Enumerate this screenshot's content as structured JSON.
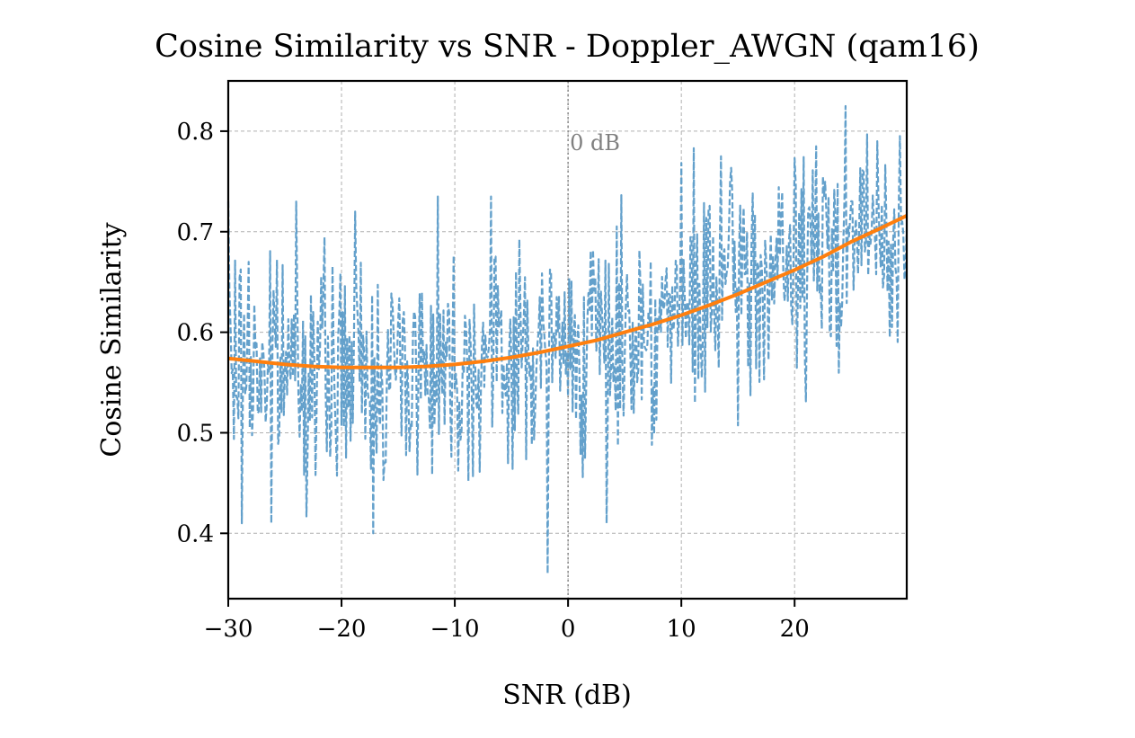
{
  "chart_data": {
    "type": "line",
    "title": "Cosine Similarity vs SNR - Doppler_AWGN (qam16)",
    "xlabel": "SNR (dB)",
    "ylabel": "Cosine Similarity",
    "xlim": [
      -30,
      29.9
    ],
    "ylim": [
      0.335,
      0.85
    ],
    "xticks": [
      -30,
      -20,
      -10,
      0,
      10,
      20
    ],
    "xtick_labels": [
      "−30",
      "−20",
      "−10",
      "0",
      "10",
      "20"
    ],
    "yticks": [
      0.4,
      0.5,
      0.6,
      0.7,
      0.8
    ],
    "ytick_labels": [
      "0.4",
      "0.5",
      "0.6",
      "0.7",
      "0.8"
    ],
    "grid": true,
    "grid_style": "dashed",
    "annotation": {
      "text": "0 dB",
      "x": 0,
      "y": 0.79,
      "vline_x": 0,
      "color": "#808080"
    },
    "series": [
      {
        "style": "dashed",
        "color": "#5b9bc8",
        "x_range": [
          -30,
          29.9
        ],
        "x_step": 0.1,
        "envelope": {
          "x": [
            -30,
            -25,
            -20,
            -15,
            -10,
            -5,
            0,
            5,
            10,
            15,
            20,
            25,
            29.9
          ],
          "mean": [
            0.57,
            0.565,
            0.562,
            0.565,
            0.57,
            0.575,
            0.585,
            0.6,
            0.62,
            0.645,
            0.665,
            0.7,
            0.69
          ],
          "spread": [
            0.055,
            0.055,
            0.055,
            0.055,
            0.055,
            0.055,
            0.055,
            0.055,
            0.06,
            0.06,
            0.06,
            0.055,
            0.05
          ]
        },
        "extremes": [
          {
            "x": -30,
            "y": 0.73
          },
          {
            "x": -28.8,
            "y": 0.41
          },
          {
            "x": -28.2,
            "y": 0.67
          },
          {
            "x": -26.2,
            "y": 0.41
          },
          {
            "x": -24.0,
            "y": 0.73
          },
          {
            "x": -18.8,
            "y": 0.72
          },
          {
            "x": -17.2,
            "y": 0.4
          },
          {
            "x": -11.5,
            "y": 0.735
          },
          {
            "x": -6.8,
            "y": 0.735
          },
          {
            "x": -1.8,
            "y": 0.36
          },
          {
            "x": 3.4,
            "y": 0.41
          },
          {
            "x": 13.5,
            "y": 0.775
          },
          {
            "x": 24.5,
            "y": 0.825
          },
          {
            "x": 27.3,
            "y": 0.79
          }
        ]
      },
      {
        "style": "solid",
        "color": "#ff7f0e",
        "x": [
          -30,
          -27.5,
          -25,
          -22.5,
          -20,
          -17.5,
          -15,
          -12.5,
          -10,
          -7.5,
          -5,
          -2.5,
          0,
          2.5,
          5,
          7.5,
          10,
          12.5,
          15,
          17.5,
          20,
          22.5,
          25,
          27.5,
          29.9
        ],
        "y": [
          0.574,
          0.571,
          0.568,
          0.566,
          0.565,
          0.565,
          0.565,
          0.566,
          0.568,
          0.571,
          0.575,
          0.58,
          0.586,
          0.592,
          0.6,
          0.608,
          0.617,
          0.627,
          0.638,
          0.65,
          0.662,
          0.675,
          0.69,
          0.703,
          0.716
        ]
      }
    ]
  }
}
